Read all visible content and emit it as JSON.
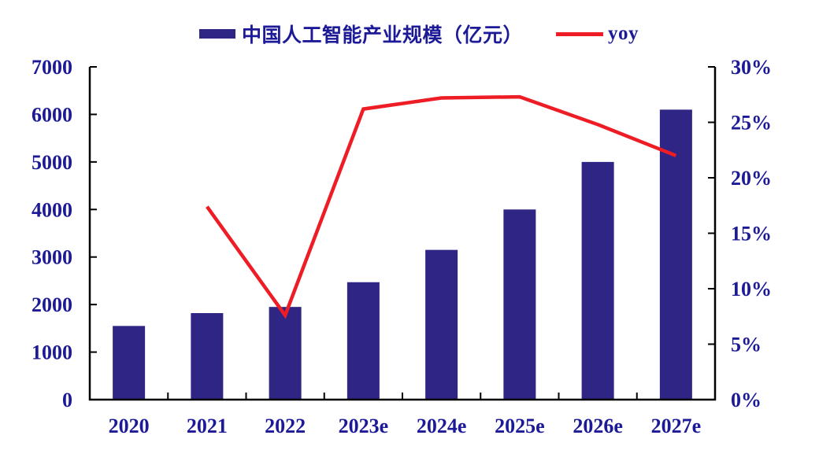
{
  "chart_data": {
    "type": "bar",
    "subtype": "bar+line-combo",
    "title": "",
    "categories": [
      "2020",
      "2021",
      "2022",
      "2023e",
      "2024e",
      "2025e",
      "2026e",
      "2027e"
    ],
    "series": [
      {
        "name": "中国人工智能产业规模（亿元）",
        "type": "bar",
        "axis": "left",
        "values": [
          1550,
          1820,
          1950,
          2470,
          3150,
          4000,
          5000,
          6100
        ]
      },
      {
        "name": "yoy",
        "type": "line",
        "axis": "right",
        "values_percent": [
          null,
          17.4,
          7.6,
          26.2,
          27.2,
          27.3,
          24.8,
          22.0
        ]
      }
    ],
    "left_axis": {
      "min": 0,
      "max": 7000,
      "step": 1000,
      "tick_labels": [
        "0",
        "1000",
        "2000",
        "3000",
        "4000",
        "5000",
        "6000",
        "7000"
      ]
    },
    "right_axis": {
      "min": 0,
      "max": 30,
      "step": 5,
      "tick_labels": [
        "0%",
        "5%",
        "10%",
        "15%",
        "20%",
        "25%",
        "30%"
      ]
    },
    "grid": false,
    "legend_position": "top-center",
    "colors": {
      "bar": "#2E2584",
      "line": "#EE1C25",
      "text": "#1C1A96",
      "axis": "#000000",
      "background": "#FFFFFF"
    }
  }
}
